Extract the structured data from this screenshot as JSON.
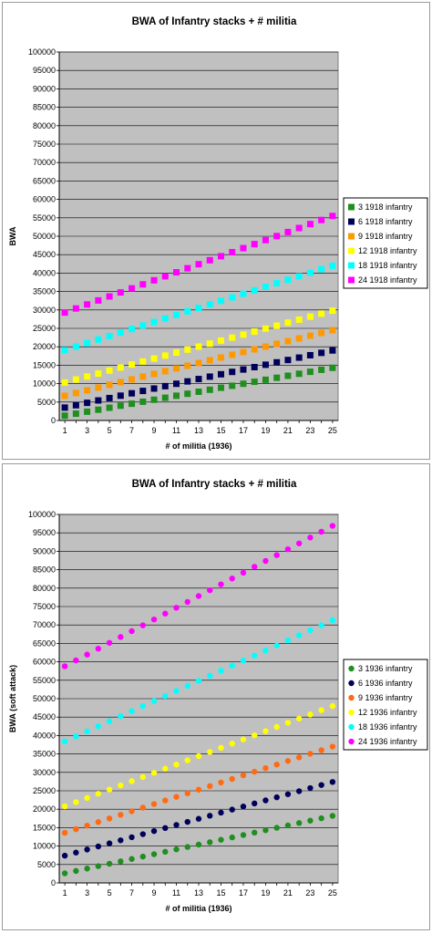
{
  "chart_data": [
    {
      "type": "scatter",
      "marker": "square",
      "title": "BWA of Infantry stacks + # militia",
      "xlabel": "# of militia (1936)",
      "ylabel": "BWA",
      "xlim": [
        1,
        25
      ],
      "ylim": [
        0,
        100000
      ],
      "ystep": 5000,
      "xticks": [
        1,
        3,
        5,
        7,
        9,
        11,
        13,
        15,
        17,
        19,
        21,
        23,
        25
      ],
      "grid": true,
      "plot_background": "#c0c0c0",
      "legend_position": "right",
      "series": [
        {
          "name": "3 1918 infantry",
          "color": "#1f8f1f",
          "start": 1300,
          "end": 14300
        },
        {
          "name": " 6 1918 infantry",
          "color": "#00005a",
          "start": 3500,
          "end": 19000
        },
        {
          "name": "9 1918 infantry",
          "color": "#ff9900",
          "start": 6700,
          "end": 24500
        },
        {
          "name": "12 1918 infantry",
          "color": "#ffff00",
          "start": 10300,
          "end": 29800
        },
        {
          "name": "18 1918 infantry",
          "color": "#00ffff",
          "start": 19100,
          "end": 42000
        },
        {
          "name": "24 1918 infantry",
          "color": "#ff00ff",
          "start": 29300,
          "end": 55500
        }
      ]
    },
    {
      "type": "scatter",
      "marker": "circle",
      "title": "BWA of Infantry stacks + # militia",
      "xlabel": "# of militia (1936)",
      "ylabel": "BWA (soft attack)",
      "xlim": [
        1,
        25
      ],
      "ylim": [
        0,
        100000
      ],
      "ystep": 5000,
      "xticks": [
        1,
        3,
        5,
        7,
        9,
        11,
        13,
        15,
        17,
        19,
        21,
        23,
        25
      ],
      "grid": true,
      "plot_background": "#c0c0c0",
      "legend_position": "right",
      "series": [
        {
          "name": "3 1936 infantry",
          "color": "#1f8f1f",
          "start": 2600,
          "end": 18200
        },
        {
          "name": "6 1936 infantry",
          "color": "#00005a",
          "start": 7400,
          "end": 27400
        },
        {
          "name": "9 1936 infantry",
          "color": "#ff6a13",
          "start": 13600,
          "end": 37000
        },
        {
          "name": "12 1936 infantry",
          "color": "#ffff00",
          "start": 20800,
          "end": 48000
        },
        {
          "name": "18 1936 infantry",
          "color": "#00ffff",
          "start": 38400,
          "end": 71300
        },
        {
          "name": "24 1936 infantry",
          "color": "#ff00ff",
          "start": 58800,
          "end": 96900
        }
      ]
    }
  ]
}
